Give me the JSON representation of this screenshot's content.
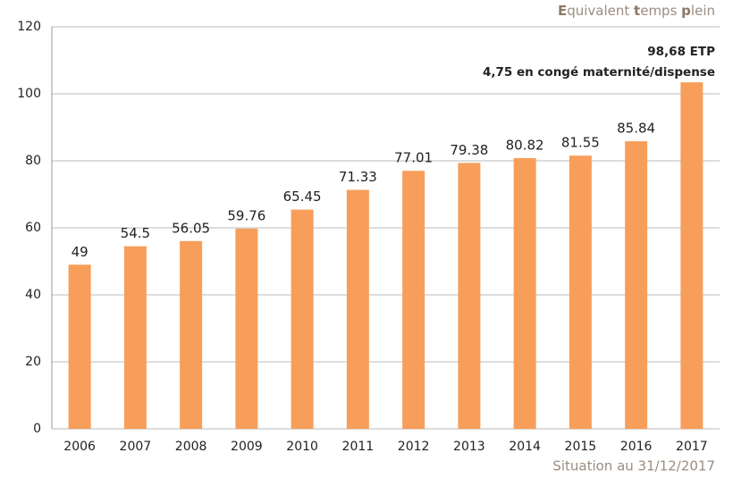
{
  "chart_data": {
    "type": "bar",
    "subtitle_parts": [
      "E",
      "quivalent ",
      "t",
      "emps ",
      "p",
      "lein"
    ],
    "categories": [
      "2006",
      "2007",
      "2008",
      "2009",
      "2010",
      "2011",
      "2012",
      "2013",
      "2014",
      "2015",
      "2016",
      "2017"
    ],
    "values": [
      49,
      54.5,
      56.05,
      59.76,
      65.45,
      71.33,
      77.01,
      79.38,
      80.82,
      81.55,
      85.84,
      103.43
    ],
    "value_labels": [
      "49",
      "54.5",
      "56.05",
      "59.76",
      "65.45",
      "71.33",
      "77.01",
      "79.38",
      "80.82",
      "81.55",
      "85.84",
      null
    ],
    "annotations": [
      "98,68 ETP",
      "4,75 en congé maternité/dispense"
    ],
    "footer": "Situation au 31/12/2017",
    "color": "#f79e5a",
    "ylim": [
      0,
      120
    ],
    "yticks": [
      0,
      20,
      40,
      60,
      80,
      100,
      120
    ],
    "grid": true
  }
}
